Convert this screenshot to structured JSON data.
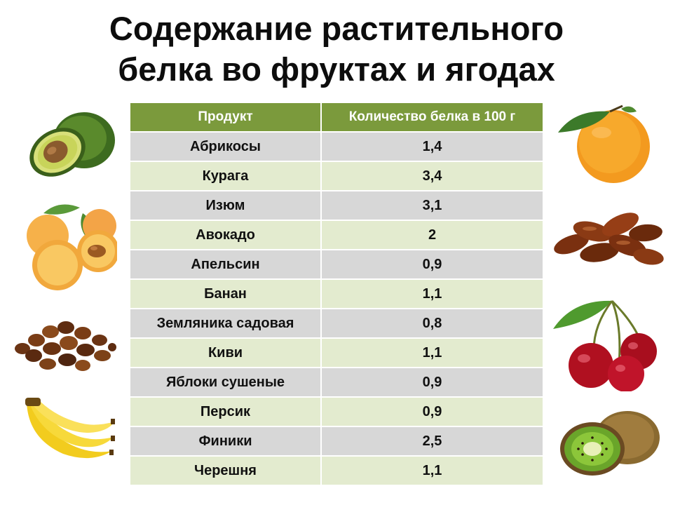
{
  "title": {
    "line1": "Содержание растительного",
    "line2": "белка во фруктах и ягодах"
  },
  "table": {
    "headers": [
      "Продукт",
      "Количество белка в 100 г"
    ],
    "rows": [
      {
        "product": "Абрикосы",
        "protein": "1,4"
      },
      {
        "product": "Курага",
        "protein": "3,4"
      },
      {
        "product": "Изюм",
        "protein": "3,1"
      },
      {
        "product": "Авокадо",
        "protein": "2"
      },
      {
        "product": "Апельсин",
        "protein": "0,9"
      },
      {
        "product": "Банан",
        "protein": "1,1"
      },
      {
        "product": "Земляника садовая",
        "protein": "0,8"
      },
      {
        "product": "Киви",
        "protein": "1,1"
      },
      {
        "product": "Яблоки сушеные",
        "protein": "0,9"
      },
      {
        "product": "Персик",
        "protein": "0,9"
      },
      {
        "product": "Финики",
        "protein": "2,5"
      },
      {
        "product": "Черешня",
        "protein": "1,1"
      }
    ]
  },
  "colors": {
    "header_bg": "#7b9a3c",
    "row_gray": "#d7d7d7",
    "row_green": "#e3ebcf"
  },
  "images": {
    "left": [
      "avocado-image",
      "apricot-image",
      "raisins-image",
      "banana-image"
    ],
    "right": [
      "orange-image",
      "dates-image",
      "cherry-image",
      "kiwi-image"
    ]
  }
}
